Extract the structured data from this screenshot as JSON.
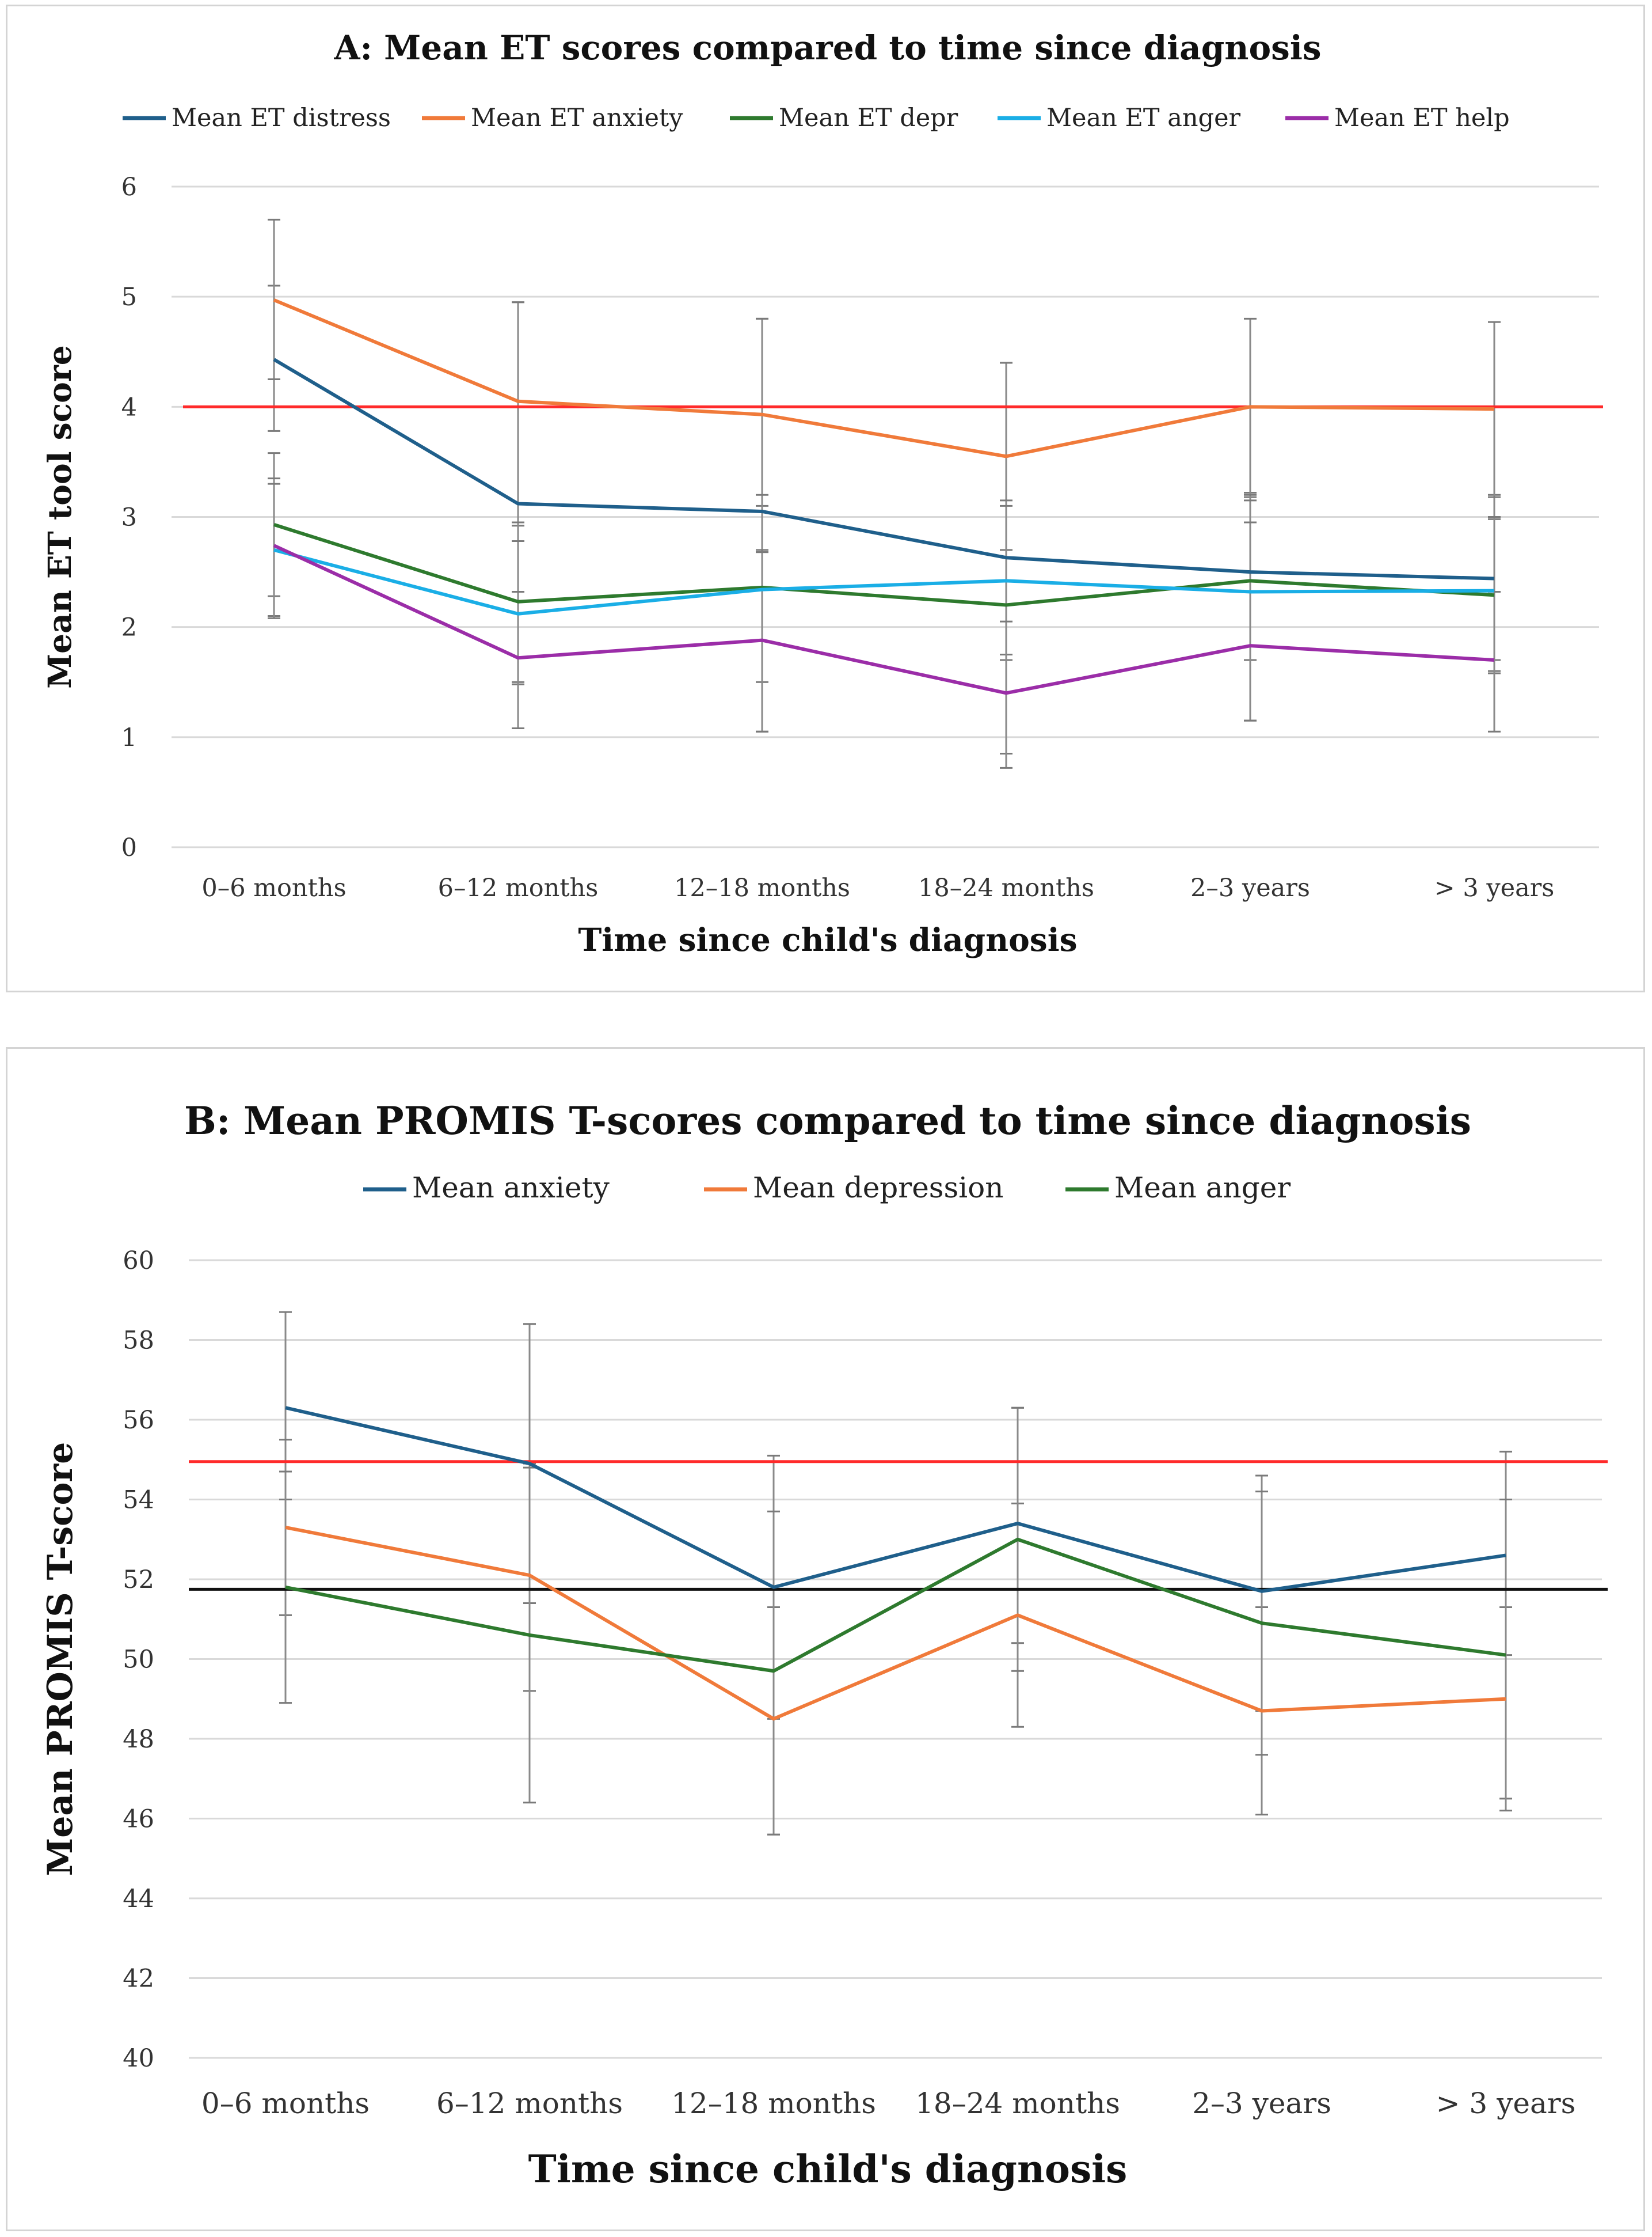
{
  "charts": [
    {
      "type": "line",
      "title": "A: Mean ET scores compared to time since diagnosis",
      "xlabel": "Time since child's diagnosis",
      "ylabel": "Mean ET tool score",
      "ylim": [
        0,
        6
      ],
      "ytick_step": 1,
      "yticks": [
        "0",
        "1",
        "2",
        "3",
        "4",
        "5",
        "6"
      ],
      "categories": [
        "0–6 months",
        "6–12 months",
        "12–18 months",
        "18–24 months",
        "2–3 years",
        "> 3 years"
      ],
      "reference_lines": [
        {
          "y": 4,
          "color": "#ff2a2a"
        }
      ],
      "legend_position": "top",
      "series": [
        {
          "name": "Mean ET distress",
          "color": "#1f5f8b",
          "values": [
            4.43,
            3.12,
            3.05,
            2.63,
            2.5,
            2.44
          ],
          "err": [
            [
              3.78,
              5.1
            ],
            [
              1.5,
              4.95
            ],
            [
              1.5,
              4.8
            ],
            [
              0.85,
              4.4
            ],
            [
              1.7,
              3.22
            ],
            [
              1.7,
              3.2
            ]
          ]
        },
        {
          "name": "Mean ET anxiety",
          "color": "#f07a3a",
          "values": [
            4.97,
            4.05,
            3.93,
            3.55,
            4.0,
            3.98
          ],
          "err": [
            [
              4.25,
              5.7
            ],
            [
              2.92,
              4.95
            ],
            [
              3.1,
              4.8
            ],
            [
              2.7,
              4.4
            ],
            [
              3.18,
              4.8
            ],
            [
              3.18,
              4.77
            ]
          ]
        },
        {
          "name": "Mean ET depr",
          "color": "#2e7a2e",
          "values": [
            2.93,
            2.23,
            2.36,
            2.2,
            2.42,
            2.29
          ],
          "err": [
            [
              2.28,
              3.58
            ],
            [
              1.48,
              2.95
            ],
            [
              2.68,
              3.2
            ],
            [
              1.7,
              3.15
            ],
            [
              1.15,
              3.2
            ],
            [
              1.58,
              2.98
            ]
          ]
        },
        {
          "name": "Mean ET anger",
          "color": "#1aaee6",
          "values": [
            2.7,
            2.12,
            2.34,
            2.42,
            2.32,
            2.33
          ],
          "err": [
            [
              2.1,
              3.35
            ],
            [
              1.08,
              2.78
            ],
            [
              1.05,
              2.7
            ],
            [
              1.75,
              3.1
            ],
            [
              1.15,
              3.15
            ],
            [
              1.6,
              3.0
            ]
          ]
        },
        {
          "name": "Mean ET help",
          "color": "#9b2da8",
          "values": [
            2.74,
            1.72,
            1.88,
            1.4,
            1.83,
            1.7
          ],
          "err": [
            [
              2.08,
              3.3
            ],
            [
              1.08,
              2.32
            ],
            [
              1.05,
              2.68
            ],
            [
              0.72,
              2.05
            ],
            [
              1.15,
              2.95
            ],
            [
              1.05,
              2.32
            ]
          ]
        }
      ]
    },
    {
      "type": "line",
      "title": "B: Mean PROMIS T-scores compared to time since diagnosis",
      "xlabel": "Time since child's diagnosis",
      "ylabel": "Mean PROMIS T-score",
      "ylim": [
        40,
        60
      ],
      "ytick_step": 2,
      "yticks": [
        "40",
        "42",
        "44",
        "46",
        "48",
        "50",
        "52",
        "54",
        "56",
        "58",
        "60"
      ],
      "categories": [
        "0–6 months",
        "6–12 months",
        "12–18 months",
        "18–24 months",
        "2–3 years",
        "> 3 years"
      ],
      "reference_lines": [
        {
          "y": 54.95,
          "color": "#ff2a2a"
        },
        {
          "y": 51.75,
          "color": "#111111"
        }
      ],
      "legend_position": "top",
      "series": [
        {
          "name": "Mean anxiety",
          "color": "#1f5f8b",
          "values": [
            56.3,
            54.9,
            51.8,
            53.4,
            51.7,
            52.6
          ],
          "err": [
            [
              54.0,
              58.7
            ],
            [
              51.4,
              58.4
            ],
            [
              48.5,
              55.1
            ],
            [
              50.4,
              56.3
            ],
            [
              48.7,
              54.6
            ],
            [
              50.1,
              55.2
            ]
          ]
        },
        {
          "name": "Mean depression",
          "color": "#f07a3a",
          "values": [
            53.3,
            52.1,
            48.5,
            51.1,
            48.7,
            49.0
          ],
          "err": [
            [
              51.1,
              55.5
            ],
            [
              49.2,
              54.9
            ],
            [
              45.6,
              51.3
            ],
            [
              48.3,
              53.9
            ],
            [
              46.1,
              51.3
            ],
            [
              46.5,
              51.3
            ]
          ]
        },
        {
          "name": "Mean anger",
          "color": "#2e7a2e",
          "values": [
            51.8,
            50.6,
            49.7,
            53.0,
            50.9,
            50.1
          ],
          "err": [
            [
              48.9,
              54.7
            ],
            [
              46.4,
              54.8
            ],
            [
              45.6,
              53.7
            ],
            [
              49.7,
              56.3
            ],
            [
              47.6,
              54.2
            ],
            [
              46.2,
              54.0
            ]
          ]
        }
      ]
    }
  ]
}
